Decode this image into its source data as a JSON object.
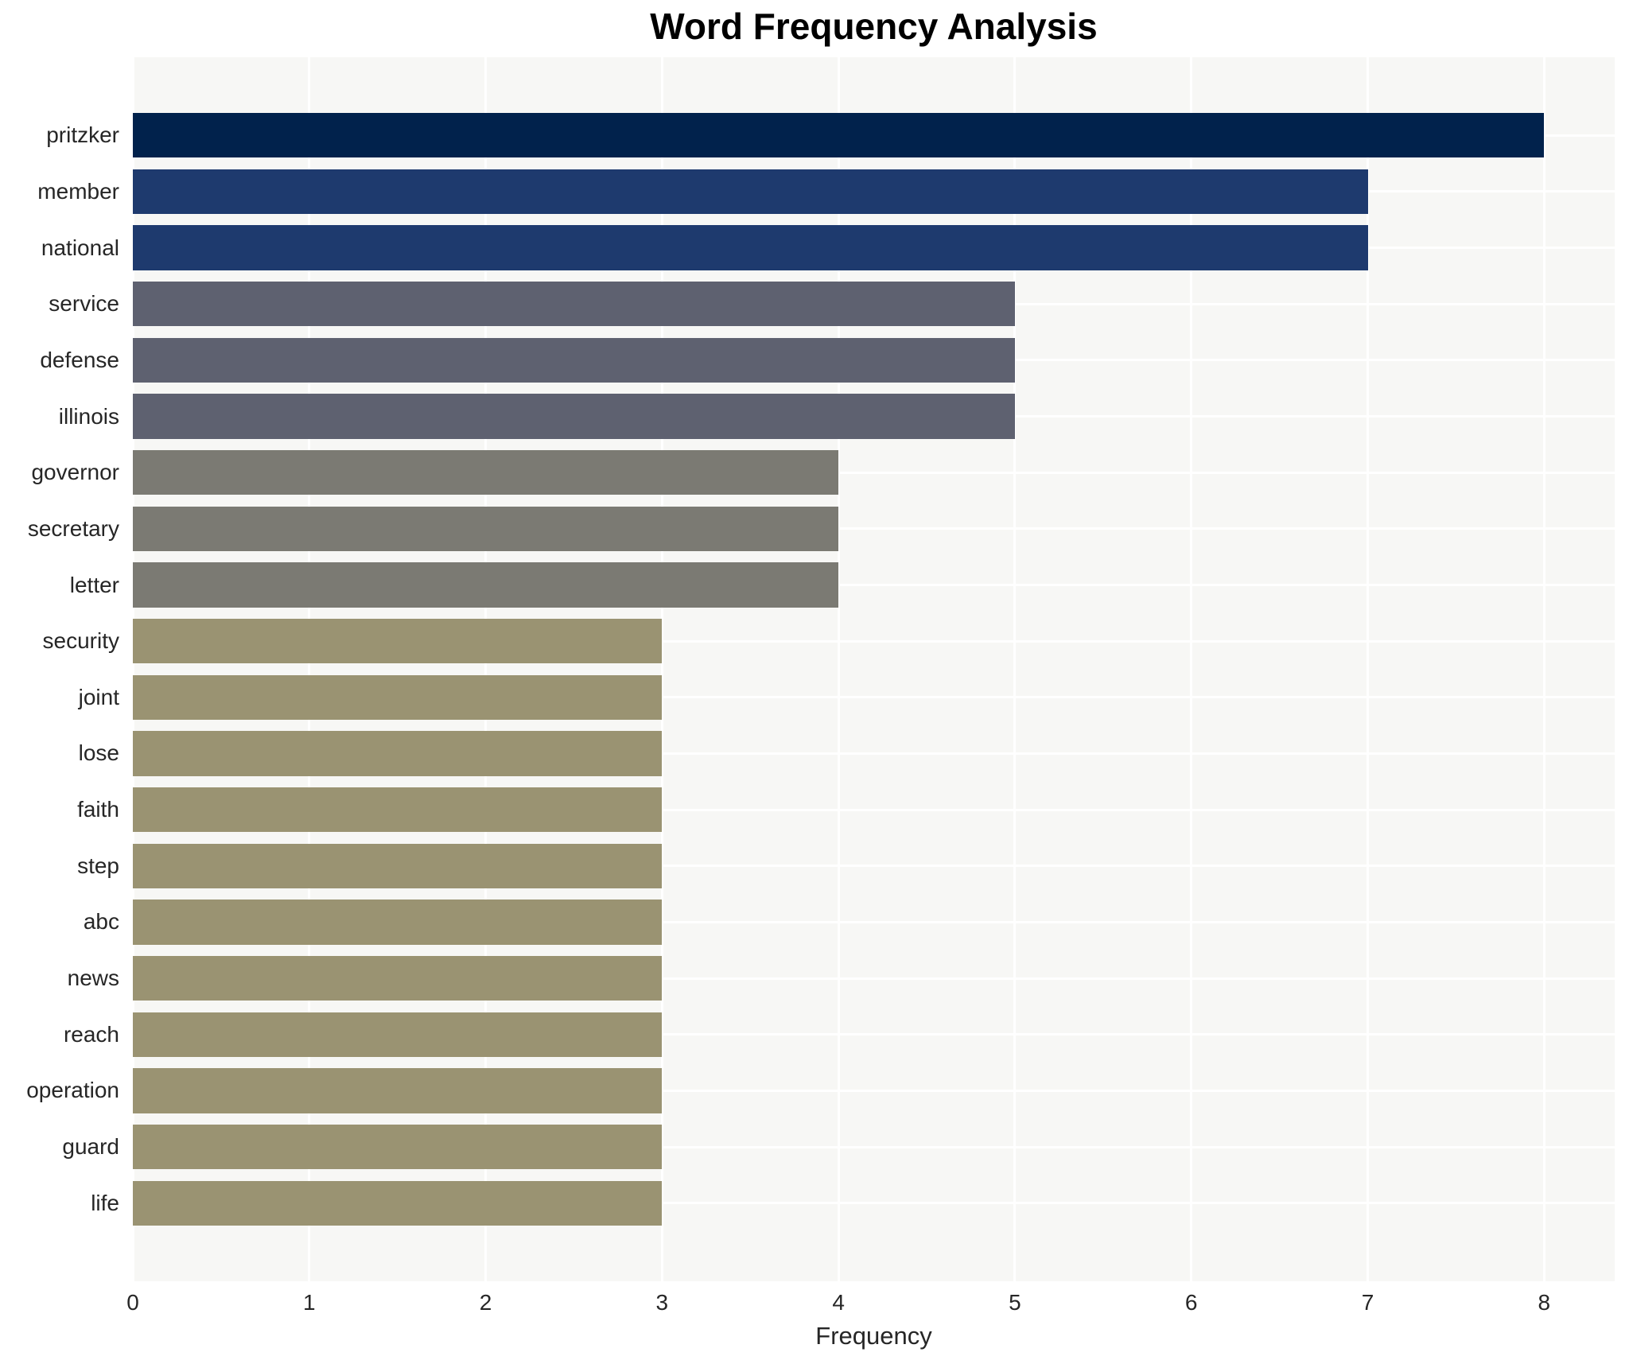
{
  "page": {
    "title": "Word Frequency Analysis"
  },
  "chart_data": {
    "type": "bar",
    "orientation": "horizontal",
    "title": "Word Frequency Analysis",
    "xlabel": "Frequency",
    "ylabel": "",
    "categories": [
      "pritzker",
      "member",
      "national",
      "service",
      "defense",
      "illinois",
      "governor",
      "secretary",
      "letter",
      "security",
      "joint",
      "lose",
      "faith",
      "step",
      "abc",
      "news",
      "reach",
      "operation",
      "guard",
      "life"
    ],
    "values": [
      8,
      7,
      7,
      5,
      5,
      5,
      4,
      4,
      4,
      3,
      3,
      3,
      3,
      3,
      3,
      3,
      3,
      3,
      3,
      3
    ],
    "bar_colors": [
      "#01224c",
      "#1e3a6e",
      "#1e3a6e",
      "#5e6170",
      "#5e6170",
      "#5e6170",
      "#7b7a73",
      "#7b7a73",
      "#7b7a73",
      "#9a9372",
      "#9a9372",
      "#9a9372",
      "#9a9372",
      "#9a9372",
      "#9a9372",
      "#9a9372",
      "#9a9372",
      "#9a9372",
      "#9a9372",
      "#9a9372"
    ],
    "xticks": [
      0,
      1,
      2,
      3,
      4,
      5,
      6,
      7,
      8
    ],
    "xlim": [
      0,
      8.4
    ],
    "grid": true,
    "legend": "none",
    "plot_background": "#f7f7f5",
    "grid_color": "#ffffff",
    "text_color": "#262626"
  }
}
